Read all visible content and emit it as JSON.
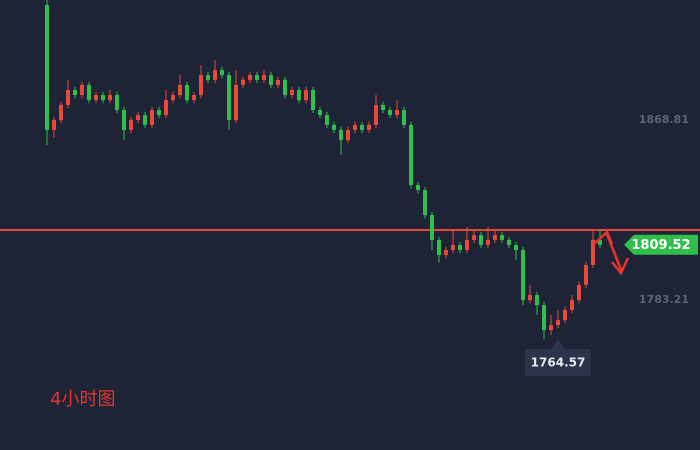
{
  "chart_data": {
    "type": "candlestick",
    "annotation": "4小时图",
    "ylim": [
      1711.9,
      1925.9
    ],
    "yticks": [
      1783.21,
      1868.81
    ],
    "up_color": "#e8493a",
    "down_color": "#2fbf4a",
    "last_price": 1809.52,
    "low_marker": 1764.57,
    "hline": 1816.5,
    "hline_color": "#e8493a",
    "candles": [
      [
        1923.5,
        1925.9,
        1856.9,
        1864.1
      ],
      [
        1864.1,
        1870.3,
        1860.5,
        1868.8
      ],
      [
        1868.8,
        1877.5,
        1867.3,
        1876.0
      ],
      [
        1876.0,
        1887.9,
        1874.5,
        1883.1
      ],
      [
        1883.1,
        1884.6,
        1879.2,
        1880.7
      ],
      [
        1880.7,
        1887.0,
        1879.2,
        1885.5
      ],
      [
        1885.5,
        1887.0,
        1876.8,
        1878.3
      ],
      [
        1878.3,
        1882.2,
        1876.8,
        1880.7
      ],
      [
        1880.7,
        1882.2,
        1876.8,
        1878.3
      ],
      [
        1878.3,
        1883.1,
        1876.8,
        1880.7
      ],
      [
        1880.7,
        1882.2,
        1872.1,
        1873.6
      ],
      [
        1873.6,
        1875.1,
        1859.3,
        1864.1
      ],
      [
        1864.1,
        1870.3,
        1862.6,
        1868.8
      ],
      [
        1868.8,
        1872.7,
        1867.3,
        1871.2
      ],
      [
        1871.2,
        1872.7,
        1865.0,
        1866.5
      ],
      [
        1866.5,
        1875.1,
        1865.0,
        1873.6
      ],
      [
        1873.6,
        1875.1,
        1869.7,
        1871.2
      ],
      [
        1871.2,
        1883.1,
        1869.7,
        1878.3
      ],
      [
        1878.3,
        1882.2,
        1876.8,
        1880.7
      ],
      [
        1880.7,
        1890.2,
        1879.2,
        1885.5
      ],
      [
        1885.5,
        1887.0,
        1876.8,
        1878.3
      ],
      [
        1878.3,
        1882.2,
        1876.8,
        1880.7
      ],
      [
        1880.7,
        1894.9,
        1879.2,
        1890.2
      ],
      [
        1890.2,
        1891.7,
        1886.4,
        1887.9
      ],
      [
        1887.9,
        1897.3,
        1886.4,
        1892.6
      ],
      [
        1892.6,
        1894.1,
        1888.7,
        1890.2
      ],
      [
        1890.2,
        1891.7,
        1864.1,
        1868.8
      ],
      [
        1868.8,
        1892.6,
        1867.3,
        1885.5
      ],
      [
        1885.5,
        1889.4,
        1884.0,
        1887.9
      ],
      [
        1887.9,
        1891.7,
        1886.4,
        1890.2
      ],
      [
        1890.2,
        1891.7,
        1886.4,
        1887.9
      ],
      [
        1887.9,
        1892.6,
        1886.4,
        1890.2
      ],
      [
        1890.2,
        1891.7,
        1884.0,
        1885.5
      ],
      [
        1885.5,
        1889.4,
        1884.0,
        1887.9
      ],
      [
        1887.9,
        1889.4,
        1879.2,
        1880.7
      ],
      [
        1880.7,
        1884.6,
        1879.2,
        1883.1
      ],
      [
        1883.1,
        1884.6,
        1876.8,
        1878.3
      ],
      [
        1878.3,
        1884.6,
        1876.8,
        1883.1
      ],
      [
        1883.1,
        1884.6,
        1872.1,
        1873.6
      ],
      [
        1873.6,
        1875.1,
        1869.7,
        1871.2
      ],
      [
        1871.2,
        1872.7,
        1865.0,
        1866.5
      ],
      [
        1866.5,
        1868.0,
        1862.6,
        1864.1
      ],
      [
        1864.1,
        1865.6,
        1852.2,
        1859.3
      ],
      [
        1859.3,
        1865.6,
        1857.8,
        1864.1
      ],
      [
        1864.1,
        1868.0,
        1862.6,
        1866.5
      ],
      [
        1866.5,
        1868.0,
        1862.6,
        1864.1
      ],
      [
        1864.1,
        1868.0,
        1862.6,
        1866.5
      ],
      [
        1866.5,
        1880.7,
        1865.0,
        1876.0
      ],
      [
        1876.0,
        1877.5,
        1872.1,
        1873.6
      ],
      [
        1873.6,
        1875.1,
        1869.7,
        1871.2
      ],
      [
        1871.2,
        1878.3,
        1869.7,
        1873.6
      ],
      [
        1873.6,
        1875.1,
        1865.0,
        1866.5
      ],
      [
        1866.5,
        1868.0,
        1836.4,
        1837.9
      ],
      [
        1837.9,
        1839.4,
        1834.0,
        1835.5
      ],
      [
        1835.5,
        1837.0,
        1822.1,
        1823.6
      ],
      [
        1823.6,
        1825.1,
        1807.0,
        1811.8
      ],
      [
        1811.8,
        1813.3,
        1801.0,
        1804.6
      ],
      [
        1804.6,
        1808.5,
        1803.1,
        1807.0
      ],
      [
        1807.0,
        1816.5,
        1805.5,
        1809.4
      ],
      [
        1809.4,
        1810.9,
        1805.5,
        1807.0
      ],
      [
        1807.0,
        1818.0,
        1805.5,
        1811.8
      ],
      [
        1811.8,
        1816.5,
        1810.3,
        1814.1
      ],
      [
        1814.1,
        1815.6,
        1807.9,
        1809.4
      ],
      [
        1809.4,
        1818.0,
        1807.9,
        1811.8
      ],
      [
        1811.8,
        1816.5,
        1810.3,
        1814.1
      ],
      [
        1814.1,
        1815.6,
        1810.3,
        1811.8
      ],
      [
        1811.8,
        1813.3,
        1807.9,
        1809.4
      ],
      [
        1809.4,
        1810.9,
        1802.2,
        1807.0
      ],
      [
        1807.0,
        1808.5,
        1780.8,
        1783.2
      ],
      [
        1783.2,
        1790.4,
        1781.7,
        1785.6
      ],
      [
        1785.6,
        1787.1,
        1776.1,
        1780.8
      ],
      [
        1780.8,
        1782.3,
        1764.57,
        1768.9
      ],
      [
        1768.9,
        1776.1,
        1766.6,
        1771.3
      ],
      [
        1771.3,
        1778.5,
        1769.8,
        1773.7
      ],
      [
        1773.7,
        1780.0,
        1772.2,
        1778.5
      ],
      [
        1778.5,
        1785.6,
        1777.0,
        1783.2
      ],
      [
        1783.2,
        1791.9,
        1781.7,
        1790.4
      ],
      [
        1790.4,
        1801.4,
        1788.9,
        1799.9
      ],
      [
        1799.9,
        1816.5,
        1798.4,
        1811.8
      ],
      [
        1811.8,
        1816.5,
        1808.0,
        1809.5
      ]
    ]
  }
}
